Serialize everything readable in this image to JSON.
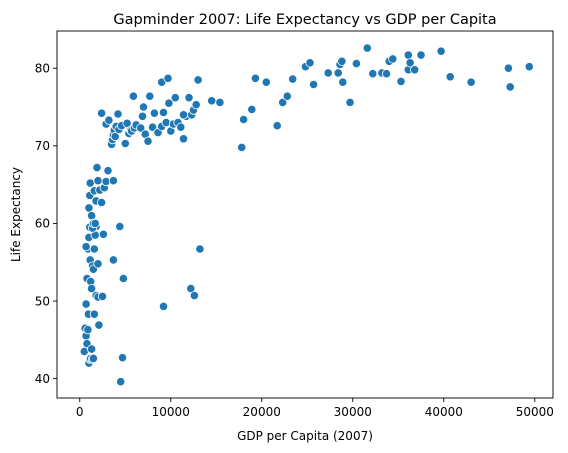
{
  "chart_data": {
    "type": "scatter",
    "title": "Gapminder 2007: Life Expectancy vs GDP per Capita",
    "xlabel": "GDP per Capita (2007)",
    "ylabel": "Life Expectancy",
    "xlim": [
      -2500,
      52000
    ],
    "ylim": [
      37.5,
      84.8
    ],
    "xticks": [
      0,
      10000,
      20000,
      30000,
      40000,
      50000
    ],
    "yticks": [
      40,
      50,
      60,
      70,
      80
    ],
    "grid": false,
    "color": "#1f77b4",
    "points": [
      [
        500,
        43.5
      ],
      [
        600,
        46.5
      ],
      [
        700,
        45.5
      ],
      [
        800,
        44.5
      ],
      [
        900,
        46.3
      ],
      [
        950,
        48.3
      ],
      [
        1000,
        42.0
      ],
      [
        1100,
        42.5
      ],
      [
        1200,
        42.6
      ],
      [
        1300,
        43.8
      ],
      [
        1400,
        42.5
      ],
      [
        1500,
        42.6
      ],
      [
        1600,
        48.3
      ],
      [
        1800,
        50.7
      ],
      [
        2000,
        50.5
      ],
      [
        2100,
        46.9
      ],
      [
        700,
        49.6
      ],
      [
        800,
        52.9
      ],
      [
        900,
        56.7
      ],
      [
        1000,
        58.2
      ],
      [
        1100,
        59.5
      ],
      [
        1150,
        55.3
      ],
      [
        1200,
        52.5
      ],
      [
        1300,
        51.6
      ],
      [
        1400,
        54.5
      ],
      [
        1500,
        54.1
      ],
      [
        1600,
        56.7
      ],
      [
        1700,
        58.5
      ],
      [
        1800,
        59.6
      ],
      [
        2000,
        54.8
      ],
      [
        2500,
        50.6
      ],
      [
        2600,
        58.6
      ],
      [
        700,
        57.0
      ],
      [
        1400,
        59.4
      ],
      [
        1000,
        62.0
      ],
      [
        1100,
        63.6
      ],
      [
        1150,
        65.2
      ],
      [
        1300,
        61.0
      ],
      [
        1500,
        60.0
      ],
      [
        1600,
        64.2
      ],
      [
        1800,
        62.9
      ],
      [
        1900,
        67.2
      ],
      [
        2000,
        65.5
      ],
      [
        2200,
        64.3
      ],
      [
        2400,
        62.7
      ],
      [
        2700,
        64.6
      ],
      [
        2900,
        65.4
      ],
      [
        3100,
        66.8
      ],
      [
        3700,
        65.5
      ],
      [
        1700,
        60.0
      ],
      [
        3700,
        55.3
      ],
      [
        4400,
        59.6
      ],
      [
        4800,
        52.9
      ],
      [
        4700,
        42.7
      ],
      [
        4500,
        39.6
      ],
      [
        2400,
        74.2
      ],
      [
        2900,
        72.8
      ],
      [
        3200,
        73.3
      ],
      [
        3500,
        70.2
      ],
      [
        3600,
        70.8
      ],
      [
        3700,
        71.4
      ],
      [
        3800,
        72.0
      ],
      [
        3900,
        71.2
      ],
      [
        4000,
        72.5
      ],
      [
        4200,
        74.1
      ],
      [
        4300,
        72.1
      ],
      [
        4600,
        72.6
      ],
      [
        5000,
        70.3
      ],
      [
        5200,
        72.9
      ],
      [
        5400,
        71.6
      ],
      [
        5600,
        72.0
      ],
      [
        5700,
        71.9
      ],
      [
        5900,
        76.4
      ],
      [
        6000,
        72.3
      ],
      [
        6200,
        72.7
      ],
      [
        6700,
        72.3
      ],
      [
        6900,
        73.8
      ],
      [
        7000,
        75.0
      ],
      [
        7200,
        71.5
      ],
      [
        7500,
        70.6
      ],
      [
        7700,
        76.4
      ],
      [
        8000,
        72.4
      ],
      [
        8200,
        74.2
      ],
      [
        8600,
        71.7
      ],
      [
        9000,
        72.5
      ],
      [
        9200,
        74.3
      ],
      [
        9500,
        73.0
      ],
      [
        9800,
        75.5
      ],
      [
        10000,
        71.9
      ],
      [
        10300,
        72.8
      ],
      [
        10500,
        76.2
      ],
      [
        10800,
        73.0
      ],
      [
        11100,
        72.4
      ],
      [
        11400,
        70.9
      ],
      [
        11700,
        73.8
      ],
      [
        12000,
        76.2
      ],
      [
        12300,
        74.0
      ],
      [
        12500,
        74.6
      ],
      [
        12800,
        75.3
      ],
      [
        13000,
        78.5
      ],
      [
        14500,
        75.8
      ],
      [
        15400,
        75.6
      ],
      [
        9000,
        78.2
      ],
      [
        9700,
        78.7
      ],
      [
        11400,
        74.0
      ],
      [
        9200,
        49.3
      ],
      [
        12200,
        51.6
      ],
      [
        12600,
        50.7
      ],
      [
        13200,
        56.7
      ],
      [
        17800,
        69.8
      ],
      [
        18000,
        73.4
      ],
      [
        18900,
        74.7
      ],
      [
        19300,
        78.7
      ],
      [
        20500,
        78.2
      ],
      [
        21700,
        72.6
      ],
      [
        22300,
        75.6
      ],
      [
        22800,
        76.4
      ],
      [
        23400,
        78.6
      ],
      [
        24800,
        80.2
      ],
      [
        25300,
        80.7
      ],
      [
        25700,
        77.9
      ],
      [
        27300,
        79.4
      ],
      [
        28400,
        79.4
      ],
      [
        28600,
        80.5
      ],
      [
        28800,
        80.9
      ],
      [
        28900,
        78.2
      ],
      [
        29700,
        75.6
      ],
      [
        30400,
        80.6
      ],
      [
        31600,
        82.6
      ],
      [
        32200,
        79.3
      ],
      [
        33200,
        79.4
      ],
      [
        33700,
        79.3
      ],
      [
        34000,
        80.9
      ],
      [
        34400,
        81.2
      ],
      [
        35300,
        78.3
      ],
      [
        36100,
        79.8
      ],
      [
        36100,
        81.7
      ],
      [
        36300,
        80.7
      ],
      [
        36800,
        79.8
      ],
      [
        37500,
        81.7
      ],
      [
        39700,
        82.2
      ],
      [
        40700,
        78.9
      ],
      [
        43000,
        78.2
      ],
      [
        47100,
        80.0
      ],
      [
        47300,
        77.6
      ],
      [
        49400,
        80.2
      ]
    ]
  }
}
